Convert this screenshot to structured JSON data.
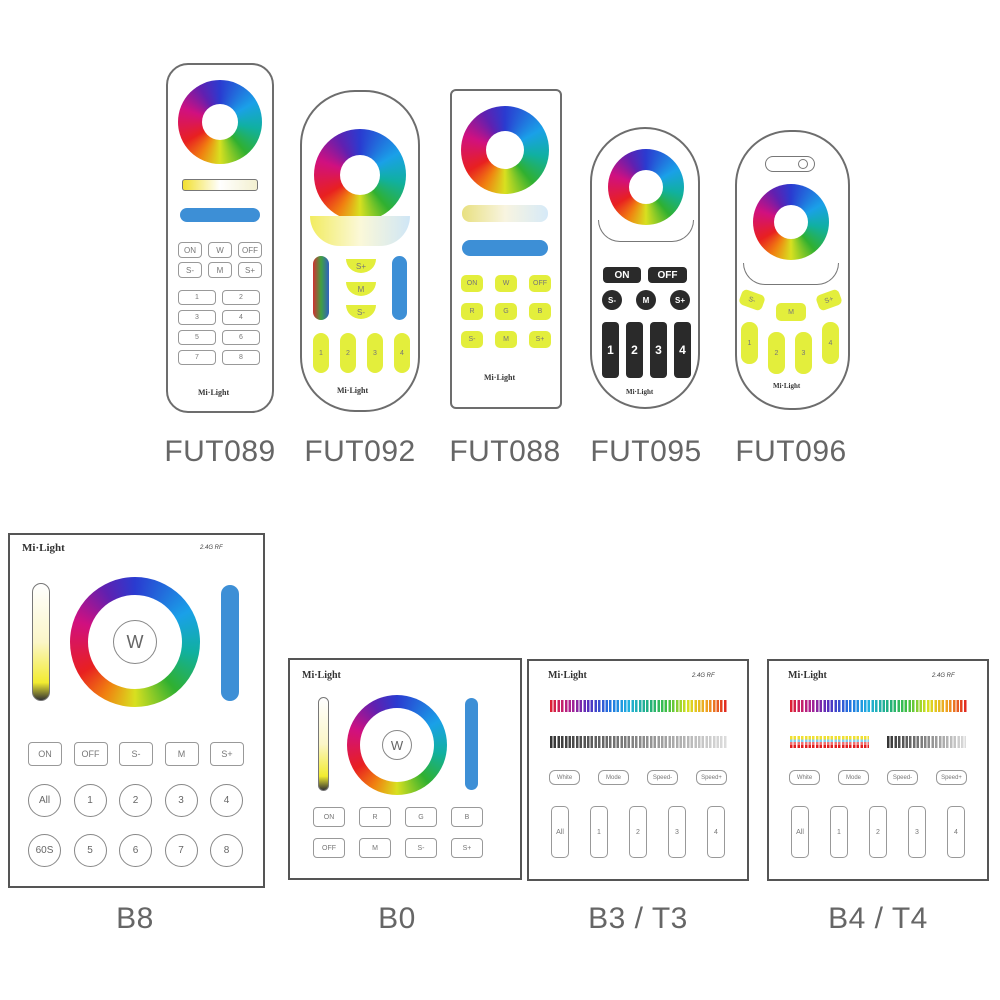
{
  "brand": "Mi·Light",
  "rf_label": "2.4G RF",
  "remotes": [
    {
      "model": "FUT089",
      "buttons": [
        "ON",
        "W",
        "OFF",
        "S-",
        "M",
        "S+"
      ],
      "zones": [
        "1",
        "2",
        "3",
        "4",
        "5",
        "6",
        "7",
        "8"
      ]
    },
    {
      "model": "FUT092",
      "mode_buttons": [
        "S+",
        "M",
        "S-"
      ],
      "zones": [
        "1",
        "2",
        "3",
        "4"
      ]
    },
    {
      "model": "FUT088",
      "buttons": [
        "ON",
        "W",
        "OFF",
        "R",
        "G",
        "B",
        "S-",
        "M",
        "S+"
      ]
    },
    {
      "model": "FUT095",
      "buttons": [
        "ON",
        "OFF"
      ],
      "mode_buttons": [
        "S-",
        "M",
        "S+"
      ],
      "zones": [
        "1",
        "2",
        "3",
        "4"
      ]
    },
    {
      "model": "FUT096",
      "mode_buttons": [
        "S-",
        "M",
        "S+"
      ],
      "zones": [
        "1",
        "2",
        "3",
        "4"
      ]
    }
  ],
  "panels": [
    {
      "model": "B8",
      "center": "W",
      "buttons": [
        "ON",
        "OFF",
        "S-",
        "M",
        "S+"
      ],
      "zones": [
        "All",
        "1",
        "2",
        "3",
        "4",
        "60S",
        "5",
        "6",
        "7",
        "8"
      ]
    },
    {
      "model": "B0",
      "center": "W",
      "buttons": [
        "ON",
        "R",
        "G",
        "B",
        "OFF",
        "M",
        "S-",
        "S+"
      ]
    },
    {
      "model": "B3 / T3",
      "buttons": [
        "White",
        "Mode",
        "Speed-",
        "Speed+"
      ],
      "zones": [
        "All",
        "1",
        "2",
        "3",
        "4"
      ]
    },
    {
      "model": "B4 / T4",
      "buttons": [
        "White",
        "Mode",
        "Speed-",
        "Speed+"
      ],
      "zones": [
        "All",
        "1",
        "2",
        "3",
        "4"
      ]
    }
  ],
  "colors": {
    "zone_yellow": "#e3ee3c",
    "slider_blue": "#3d8fd6",
    "label_gray": "#666666"
  }
}
